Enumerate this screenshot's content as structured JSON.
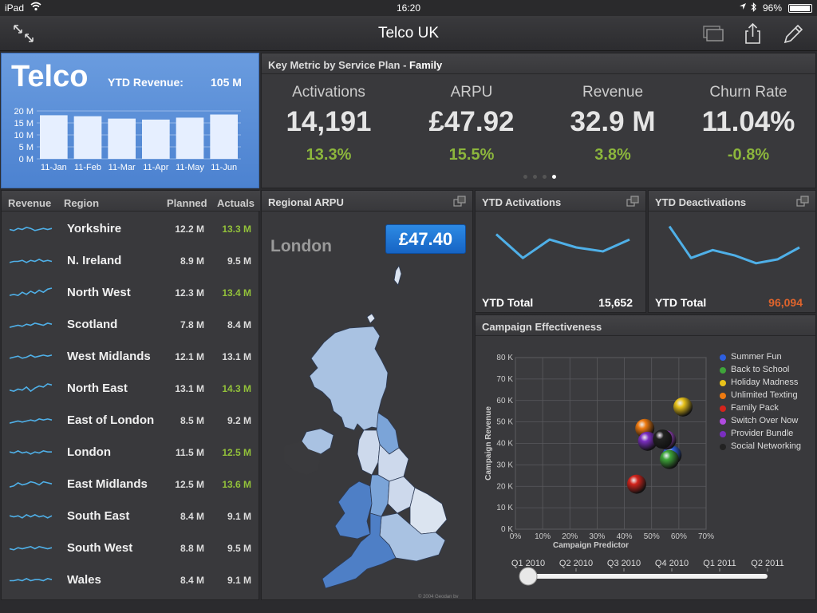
{
  "status": {
    "device": "iPad",
    "time": "16:20",
    "battery": "96%",
    "battery_level": 0.96
  },
  "nav": {
    "title": "Telco UK"
  },
  "telco": {
    "brand": "Telco",
    "ytd_label": "YTD Revenue:",
    "ytd_value": "105 M",
    "chart_data": {
      "type": "bar",
      "categories": [
        "11-Jan",
        "11-Feb",
        "11-Mar",
        "11-Apr",
        "11-May",
        "11-Jun"
      ],
      "values": [
        18.2,
        17.8,
        16.8,
        16.4,
        17.2,
        18.5
      ],
      "ylim": [
        0,
        20
      ],
      "ytick_labels": [
        "0 M",
        "5 M",
        "10 M",
        "15 M",
        "20 M"
      ],
      "yticks": [
        0,
        5,
        10,
        15,
        20
      ]
    }
  },
  "keymetric": {
    "title": "Key Metric by Service Plan - ",
    "plan": "Family",
    "metrics": [
      {
        "label": "Activations",
        "value": "14,191",
        "change": "13.3%"
      },
      {
        "label": "ARPU",
        "value": "£47.92",
        "change": "15.5%"
      },
      {
        "label": "Revenue",
        "value": "32.9 M",
        "change": "3.8%"
      },
      {
        "label": "Churn Rate",
        "value": "11.04%",
        "change": "-0.8%"
      }
    ],
    "pager_count": 4,
    "pager_active": 3
  },
  "regions": {
    "headers": {
      "revenue": "Revenue",
      "region": "Region",
      "planned": "Planned",
      "actuals": "Actuals"
    },
    "rows": [
      {
        "name": "Yorkshire",
        "planned": "12.2 M",
        "actual": "13.3 M",
        "above": true
      },
      {
        "name": "N. Ireland",
        "planned": "8.9 M",
        "actual": "9.5 M",
        "above": false
      },
      {
        "name": "North West",
        "planned": "12.3 M",
        "actual": "13.4 M",
        "above": true
      },
      {
        "name": "Scotland",
        "planned": "7.8 M",
        "actual": "8.4 M",
        "above": false
      },
      {
        "name": "West Midlands",
        "planned": "12.1 M",
        "actual": "13.1 M",
        "above": false
      },
      {
        "name": "North East",
        "planned": "13.1 M",
        "actual": "14.3 M",
        "above": true
      },
      {
        "name": "East of London",
        "planned": "8.5 M",
        "actual": "9.2 M",
        "above": false
      },
      {
        "name": "London",
        "planned": "11.5 M",
        "actual": "12.5 M",
        "above": true
      },
      {
        "name": "East Midlands",
        "planned": "12.5 M",
        "actual": "13.6 M",
        "above": true
      },
      {
        "name": "South East",
        "planned": "8.4 M",
        "actual": "9.1 M",
        "above": false
      },
      {
        "name": "South West",
        "planned": "8.8 M",
        "actual": "9.5 M",
        "above": false
      },
      {
        "name": "Wales",
        "planned": "8.4 M",
        "actual": "9.1 M",
        "above": false
      }
    ]
  },
  "regional_arpu": {
    "title": "Regional ARPU",
    "city": "London",
    "value": "£47.40",
    "copyright": "© 2004 Geodan bv"
  },
  "ytd_activations": {
    "title": "YTD Activations",
    "total_label": "YTD Total",
    "total_value": "15,652",
    "chart_data": {
      "type": "line",
      "x": [
        1,
        2,
        3,
        4,
        5,
        6
      ],
      "values": [
        30,
        12,
        26,
        20,
        17,
        26
      ],
      "ylim": [
        0,
        40
      ]
    }
  },
  "ytd_deactivations": {
    "title": "YTD Deactivations",
    "total_label": "YTD Total",
    "total_value": "96,094",
    "chart_data": {
      "type": "line",
      "x": [
        1,
        2,
        3,
        4,
        5,
        6,
        7
      ],
      "values": [
        36,
        12,
        18,
        14,
        8,
        11,
        20
      ],
      "ylim": [
        0,
        40
      ]
    }
  },
  "campaign": {
    "title": "Campaign Effectiveness",
    "slider": {
      "labels": [
        "Q1 2010",
        "Q2 2010",
        "Q3 2010",
        "Q4 2010",
        "Q1 2011",
        "Q2 2011"
      ],
      "position": 0
    },
    "chart_data": {
      "type": "scatter",
      "xlabel": "Campaign Predictor",
      "ylabel": "Campaign Revenue",
      "xlim": [
        0,
        70
      ],
      "ylim": [
        0,
        80
      ],
      "xtick_labels": [
        "0%",
        "10%",
        "20%",
        "30%",
        "40%",
        "50%",
        "60%",
        "70%"
      ],
      "ytick_labels": [
        "0 K",
        "10 K",
        "20 K",
        "30 K",
        "40 K",
        "50 K",
        "60 K",
        "70 K",
        "80 K"
      ],
      "grid": true,
      "legend": "right",
      "series": [
        {
          "name": "Summer Fun",
          "color": "#2d5fe0",
          "x": 57.5,
          "y": 34.5
        },
        {
          "name": "Back to School",
          "color": "#3fa53a",
          "x": 56.5,
          "y": 32.5
        },
        {
          "name": "Holiday Madness",
          "color": "#e8c21a",
          "x": 61.5,
          "y": 57
        },
        {
          "name": "Unlimited Texting",
          "color": "#ee7a10",
          "x": 47.5,
          "y": 47
        },
        {
          "name": "Family Pack",
          "color": "#d4241c",
          "x": 44.5,
          "y": 21
        },
        {
          "name": "Switch Over Now",
          "color": "#b04be0",
          "x": 55.5,
          "y": 41.5
        },
        {
          "name": "Provider Bundle",
          "color": "#7a2ec0",
          "x": 48.5,
          "y": 41
        },
        {
          "name": "Social Networking",
          "color": "#222222",
          "x": 54,
          "y": 42
        }
      ]
    }
  }
}
